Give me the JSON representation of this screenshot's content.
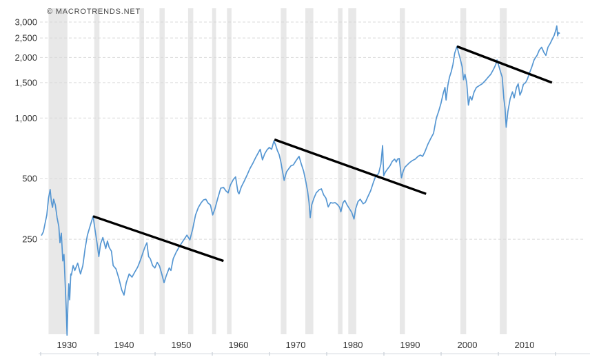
{
  "watermark": "© MACROTRENDS.NET",
  "chart_data": {
    "type": "line",
    "title": "",
    "scale": "log",
    "y_axis": {
      "scale": "log",
      "min": 84,
      "max": 3100,
      "ticks": [
        {
          "value": 3000,
          "label": "3,000"
        },
        {
          "value": 2500,
          "label": "2,500"
        },
        {
          "value": 2000,
          "label": "2,000"
        },
        {
          "value": 1500,
          "label": "1,500"
        },
        {
          "value": 1000,
          "label": "1,000"
        },
        {
          "value": 500,
          "label": "500"
        },
        {
          "value": 250,
          "label": "250"
        }
      ]
    },
    "x_axis": {
      "range": [
        1928,
        2018.6
      ],
      "ticks": [
        {
          "value": 1930,
          "label": "1930"
        },
        {
          "value": 1940,
          "label": "1940"
        },
        {
          "value": 1950,
          "label": "1950"
        },
        {
          "value": 1960,
          "label": "1960"
        },
        {
          "value": 1970,
          "label": "1970"
        },
        {
          "value": 1980,
          "label": "1980"
        },
        {
          "value": 1990,
          "label": "1990"
        },
        {
          "value": 2000,
          "label": "2000"
        },
        {
          "value": 2010,
          "label": "2010"
        }
      ]
    },
    "series": [
      {
        "name": "price",
        "color": "#5596d2",
        "points": [
          [
            1928.0,
            262
          ],
          [
            1928.3,
            272
          ],
          [
            1928.6,
            300
          ],
          [
            1928.9,
            330
          ],
          [
            1929.2,
            400
          ],
          [
            1929.5,
            442
          ],
          [
            1929.7,
            385
          ],
          [
            1929.9,
            360
          ],
          [
            1930.1,
            395
          ],
          [
            1930.4,
            370
          ],
          [
            1930.7,
            320
          ],
          [
            1931.0,
            290
          ],
          [
            1931.2,
            240
          ],
          [
            1931.45,
            268
          ],
          [
            1931.7,
            195
          ],
          [
            1931.9,
            210
          ],
          [
            1932.1,
            155
          ],
          [
            1932.3,
            112
          ],
          [
            1932.45,
            83
          ],
          [
            1932.6,
            120
          ],
          [
            1932.75,
            150
          ],
          [
            1932.9,
            125
          ],
          [
            1933.1,
            168
          ],
          [
            1933.2,
            166
          ],
          [
            1933.5,
            185
          ],
          [
            1933.8,
            175
          ],
          [
            1934.3,
            190
          ],
          [
            1934.8,
            168
          ],
          [
            1935.2,
            185
          ],
          [
            1935.6,
            225
          ],
          [
            1936.0,
            262
          ],
          [
            1936.5,
            292
          ],
          [
            1937.0,
            325
          ],
          [
            1937.3,
            282
          ],
          [
            1937.7,
            238
          ],
          [
            1938.0,
            205
          ],
          [
            1938.3,
            237
          ],
          [
            1938.7,
            255
          ],
          [
            1939.2,
            225
          ],
          [
            1939.5,
            245
          ],
          [
            1939.8,
            228
          ],
          [
            1940.2,
            218
          ],
          [
            1940.5,
            185
          ],
          [
            1941.0,
            178
          ],
          [
            1941.5,
            160
          ],
          [
            1942.0,
            140
          ],
          [
            1942.4,
            132
          ],
          [
            1942.8,
            152
          ],
          [
            1943.3,
            168
          ],
          [
            1943.8,
            162
          ],
          [
            1944.3,
            172
          ],
          [
            1944.8,
            182
          ],
          [
            1945.3,
            198
          ],
          [
            1945.8,
            218
          ],
          [
            1946.1,
            230
          ],
          [
            1946.4,
            240
          ],
          [
            1946.7,
            205
          ],
          [
            1947.0,
            200
          ],
          [
            1947.4,
            185
          ],
          [
            1947.8,
            180
          ],
          [
            1948.2,
            192
          ],
          [
            1948.6,
            184
          ],
          [
            1949.0,
            168
          ],
          [
            1949.4,
            152
          ],
          [
            1949.8,
            165
          ],
          [
            1950.3,
            180
          ],
          [
            1950.6,
            175
          ],
          [
            1951.0,
            200
          ],
          [
            1951.5,
            215
          ],
          [
            1952.0,
            228
          ],
          [
            1952.5,
            240
          ],
          [
            1953.0,
            252
          ],
          [
            1953.4,
            262
          ],
          [
            1953.9,
            248
          ],
          [
            1954.4,
            280
          ],
          [
            1954.9,
            330
          ],
          [
            1955.4,
            360
          ],
          [
            1955.9,
            380
          ],
          [
            1956.3,
            392
          ],
          [
            1956.7,
            395
          ],
          [
            1957.1,
            378
          ],
          [
            1957.5,
            370
          ],
          [
            1957.9,
            330
          ],
          [
            1958.3,
            355
          ],
          [
            1958.8,
            400
          ],
          [
            1959.3,
            448
          ],
          [
            1959.8,
            452
          ],
          [
            1960.2,
            435
          ],
          [
            1960.6,
            425
          ],
          [
            1961.0,
            465
          ],
          [
            1961.5,
            495
          ],
          [
            1961.9,
            510
          ],
          [
            1962.3,
            430
          ],
          [
            1962.5,
            420
          ],
          [
            1962.9,
            455
          ],
          [
            1963.4,
            485
          ],
          [
            1963.9,
            520
          ],
          [
            1964.4,
            560
          ],
          [
            1964.9,
            595
          ],
          [
            1965.4,
            635
          ],
          [
            1965.9,
            675
          ],
          [
            1966.2,
            700
          ],
          [
            1966.6,
            620
          ],
          [
            1967.0,
            665
          ],
          [
            1967.4,
            695
          ],
          [
            1967.8,
            715
          ],
          [
            1968.2,
            700
          ],
          [
            1968.6,
            770
          ],
          [
            1968.9,
            735
          ],
          [
            1969.2,
            690
          ],
          [
            1969.5,
            660
          ],
          [
            1969.8,
            610
          ],
          [
            1970.1,
            545
          ],
          [
            1970.4,
            490
          ],
          [
            1970.8,
            540
          ],
          [
            1971.2,
            560
          ],
          [
            1971.6,
            580
          ],
          [
            1972.0,
            585
          ],
          [
            1972.4,
            610
          ],
          [
            1972.9,
            640
          ],
          [
            1973.0,
            645
          ],
          [
            1973.4,
            590
          ],
          [
            1973.8,
            545
          ],
          [
            1974.2,
            480
          ],
          [
            1974.5,
            430
          ],
          [
            1974.75,
            380
          ],
          [
            1974.95,
            320
          ],
          [
            1975.2,
            370
          ],
          [
            1975.6,
            400
          ],
          [
            1976.0,
            425
          ],
          [
            1976.5,
            440
          ],
          [
            1976.9,
            445
          ],
          [
            1977.3,
            415
          ],
          [
            1977.7,
            400
          ],
          [
            1978.1,
            362
          ],
          [
            1978.5,
            380
          ],
          [
            1978.9,
            378
          ],
          [
            1979.3,
            380
          ],
          [
            1979.7,
            372
          ],
          [
            1980.1,
            360
          ],
          [
            1980.3,
            342
          ],
          [
            1980.7,
            380
          ],
          [
            1981.0,
            390
          ],
          [
            1981.4,
            370
          ],
          [
            1981.8,
            355
          ],
          [
            1982.2,
            340
          ],
          [
            1982.6,
            315
          ],
          [
            1982.9,
            355
          ],
          [
            1983.3,
            385
          ],
          [
            1983.7,
            395
          ],
          [
            1984.2,
            375
          ],
          [
            1984.6,
            382
          ],
          [
            1985.0,
            405
          ],
          [
            1985.5,
            435
          ],
          [
            1986.0,
            480
          ],
          [
            1986.4,
            515
          ],
          [
            1986.9,
            530
          ],
          [
            1987.3,
            590
          ],
          [
            1987.6,
            730
          ],
          [
            1987.8,
            517
          ],
          [
            1988.1,
            540
          ],
          [
            1988.5,
            560
          ],
          [
            1988.9,
            580
          ],
          [
            1989.3,
            610
          ],
          [
            1989.7,
            625
          ],
          [
            1990.0,
            605
          ],
          [
            1990.2,
            625
          ],
          [
            1990.5,
            630
          ],
          [
            1990.9,
            505
          ],
          [
            1991.2,
            545
          ],
          [
            1991.5,
            570
          ],
          [
            1991.9,
            585
          ],
          [
            1992.3,
            600
          ],
          [
            1992.8,
            615
          ],
          [
            1993.3,
            625
          ],
          [
            1993.8,
            645
          ],
          [
            1994.2,
            655
          ],
          [
            1994.6,
            645
          ],
          [
            1995.0,
            680
          ],
          [
            1995.5,
            740
          ],
          [
            1996.0,
            790
          ],
          [
            1996.5,
            840
          ],
          [
            1997.0,
            1000
          ],
          [
            1997.4,
            1080
          ],
          [
            1997.8,
            1180
          ],
          [
            1998.2,
            1330
          ],
          [
            1998.5,
            1420
          ],
          [
            1998.7,
            1230
          ],
          [
            1999.0,
            1450
          ],
          [
            1999.3,
            1600
          ],
          [
            1999.6,
            1700
          ],
          [
            1999.9,
            1850
          ],
          [
            2000.2,
            2100
          ],
          [
            2000.6,
            2270
          ],
          [
            2000.9,
            2100
          ],
          [
            2001.2,
            1950
          ],
          [
            2001.5,
            1800
          ],
          [
            2001.75,
            1550
          ],
          [
            2002.0,
            1650
          ],
          [
            2002.3,
            1500
          ],
          [
            2002.6,
            1160
          ],
          [
            2002.9,
            1280
          ],
          [
            2003.2,
            1230
          ],
          [
            2003.6,
            1350
          ],
          [
            2004.0,
            1420
          ],
          [
            2004.5,
            1450
          ],
          [
            2005.0,
            1480
          ],
          [
            2005.5,
            1530
          ],
          [
            2006.0,
            1590
          ],
          [
            2006.5,
            1650
          ],
          [
            2007.0,
            1750
          ],
          [
            2007.4,
            1850
          ],
          [
            2007.6,
            1945
          ],
          [
            2007.9,
            1820
          ],
          [
            2008.2,
            1700
          ],
          [
            2008.5,
            1600
          ],
          [
            2008.8,
            1250
          ],
          [
            2009.0,
            1120
          ],
          [
            2009.2,
            900
          ],
          [
            2009.5,
            1080
          ],
          [
            2009.9,
            1250
          ],
          [
            2010.3,
            1350
          ],
          [
            2010.6,
            1260
          ],
          [
            2011.0,
            1420
          ],
          [
            2011.3,
            1480
          ],
          [
            2011.6,
            1300
          ],
          [
            2011.9,
            1360
          ],
          [
            2012.2,
            1470
          ],
          [
            2012.6,
            1500
          ],
          [
            2012.9,
            1560
          ],
          [
            2013.3,
            1680
          ],
          [
            2013.7,
            1800
          ],
          [
            2014.1,
            1950
          ],
          [
            2014.6,
            2050
          ],
          [
            2015.0,
            2180
          ],
          [
            2015.4,
            2250
          ],
          [
            2015.8,
            2120
          ],
          [
            2016.15,
            2050
          ],
          [
            2016.5,
            2250
          ],
          [
            2016.9,
            2350
          ],
          [
            2017.2,
            2450
          ],
          [
            2017.6,
            2580
          ],
          [
            2017.9,
            2750
          ],
          [
            2018.05,
            2870
          ],
          [
            2018.2,
            2560
          ],
          [
            2018.35,
            2660
          ],
          [
            2018.5,
            2640
          ]
        ]
      }
    ],
    "trendlines": [
      {
        "color": "#000000",
        "from": [
          1937.0,
          325
        ],
        "to": [
          1959.8,
          195
        ]
      },
      {
        "color": "#000000",
        "from": [
          1968.7,
          782
        ],
        "to": [
          1995.2,
          420
        ]
      },
      {
        "color": "#000000",
        "from": [
          2000.6,
          2270
        ],
        "to": [
          2017.2,
          1500
        ]
      }
    ],
    "recession_bands": {
      "color": "#e8e8e8",
      "spans": [
        [
          1929.2,
          1932.5
        ],
        [
          1937.2,
          1938.1
        ],
        [
          1945.1,
          1945.9
        ],
        [
          1948.6,
          1949.5
        ],
        [
          1953.6,
          1954.5
        ],
        [
          1957.8,
          1958.5
        ],
        [
          1960.4,
          1961.2
        ],
        [
          1969.8,
          1970.8
        ],
        [
          1974.1,
          1975.5
        ],
        [
          1979.8,
          1980.6
        ],
        [
          1981.6,
          1983.0
        ],
        [
          1990.6,
          1991.5
        ],
        [
          2001.2,
          2002.2
        ],
        [
          2008.1,
          2009.3
        ]
      ]
    },
    "grid": {
      "dashed": true,
      "color": "#d9d9d9"
    },
    "legend_position": "none"
  }
}
